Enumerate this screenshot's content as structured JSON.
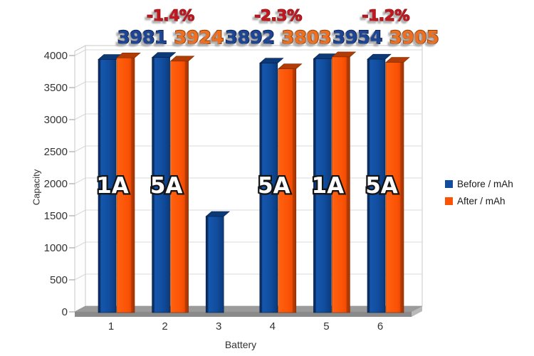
{
  "chart_data": {
    "type": "bar",
    "style": "3d-column",
    "title": "",
    "xlabel": "Battery",
    "ylabel": "Capacity",
    "categories": [
      "1",
      "2",
      "3",
      "4",
      "5",
      "6"
    ],
    "series": [
      {
        "name": "Before / mAh",
        "color": "#114d9e",
        "values": [
          3950,
          3981,
          1500,
          3892,
          3960,
          3954
        ]
      },
      {
        "name": "After / mAh",
        "color": "#fb5306",
        "values": [
          3975,
          3924,
          null,
          3803,
          3990,
          3905
        ]
      }
    ],
    "bar_group_labels": [
      "1A",
      "5A",
      null,
      "5A",
      "1A",
      "5A"
    ],
    "annotations": [
      {
        "category_index": 1,
        "percent": "-1.4%",
        "before": "3981",
        "after": "3924"
      },
      {
        "category_index": 3,
        "percent": "-2.3%",
        "before": "3892",
        "after": "3803"
      },
      {
        "category_index": 5,
        "percent": "-1.2%",
        "before": "3954",
        "after": "3905"
      }
    ],
    "ylim": [
      0,
      4000
    ],
    "ytick_step": 500,
    "grid": true,
    "legend_position": "middle-right"
  },
  "colors": {
    "before_fill": "#114d9e",
    "before_edge": "#0a2e63",
    "before_cap": "#0c3a78",
    "before_number": "#1d4596",
    "before_number_outline": "#0e2250",
    "after_fill": "#fb5306",
    "after_edge": "#b63a05",
    "after_cap": "#b13c06",
    "after_number": "#ef6f21",
    "after_number_outline": "#8f3c08",
    "percent_text": "#c5161d",
    "percent_outline": "#871015",
    "gridline": "#d9d9d9",
    "wall_edge": "#c9c9c9",
    "floor": "#9b9b9b",
    "floor_front": "#8a8a8a",
    "floor_right": "#b9b9b9",
    "axis_text": "#333333",
    "bar_label_fill": "#ffffff",
    "bar_label_outline": "#141414"
  }
}
